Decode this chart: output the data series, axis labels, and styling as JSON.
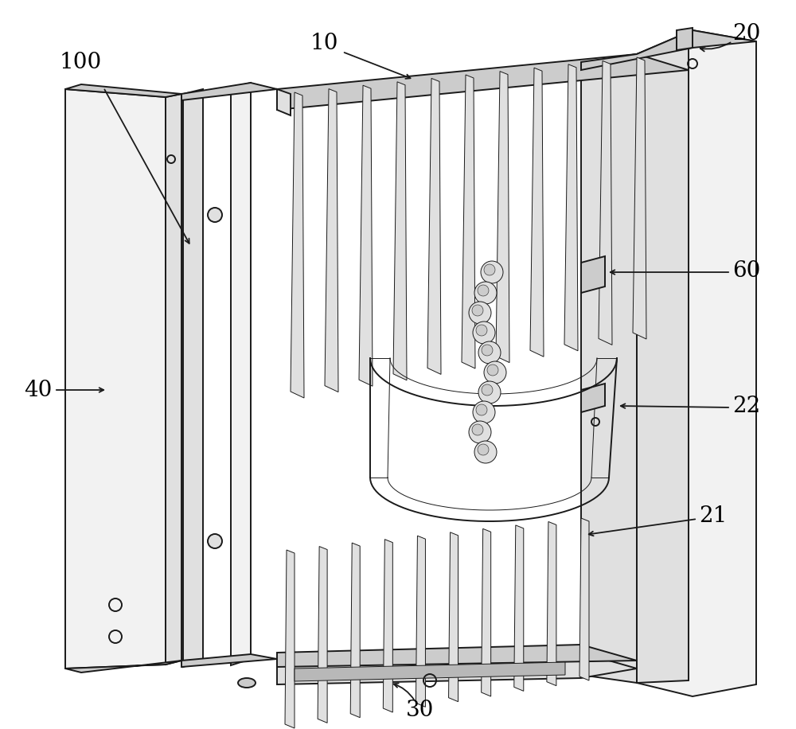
{
  "background_color": "#ffffff",
  "line_color": "#1a1a1a",
  "label_color": "#000000",
  "lw_main": 1.4,
  "lw_thin": 0.7,
  "lw_thick": 2.0,
  "label_fontsize": 20,
  "figsize": [
    10.0,
    9.16
  ],
  "dpi": 100,
  "fc_light": "#f2f2f2",
  "fc_mid": "#e0e0e0",
  "fc_dark": "#cccccc",
  "fc_darker": "#b8b8b8"
}
